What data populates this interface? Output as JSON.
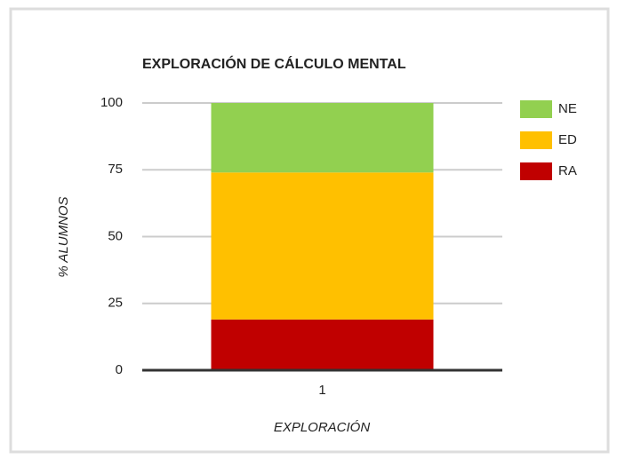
{
  "chart_data": {
    "type": "bar",
    "stacked": true,
    "title": "EXPLORACIÓN DE CÁLCULO MENTAL",
    "x_label": "EXPLORACIÓN",
    "y_label": "% ALUMNOS",
    "categories": [
      "1"
    ],
    "series": [
      {
        "name": "RA",
        "color": "#c00000",
        "values": [
          19
        ]
      },
      {
        "name": "ED",
        "color": "#ffc000",
        "values": [
          55
        ]
      },
      {
        "name": "NE",
        "color": "#92d050",
        "values": [
          26
        ]
      }
    ],
    "ylim": [
      0,
      100
    ],
    "yticks": [
      0,
      25,
      50,
      75,
      100
    ],
    "grid": true,
    "legend": "right"
  }
}
